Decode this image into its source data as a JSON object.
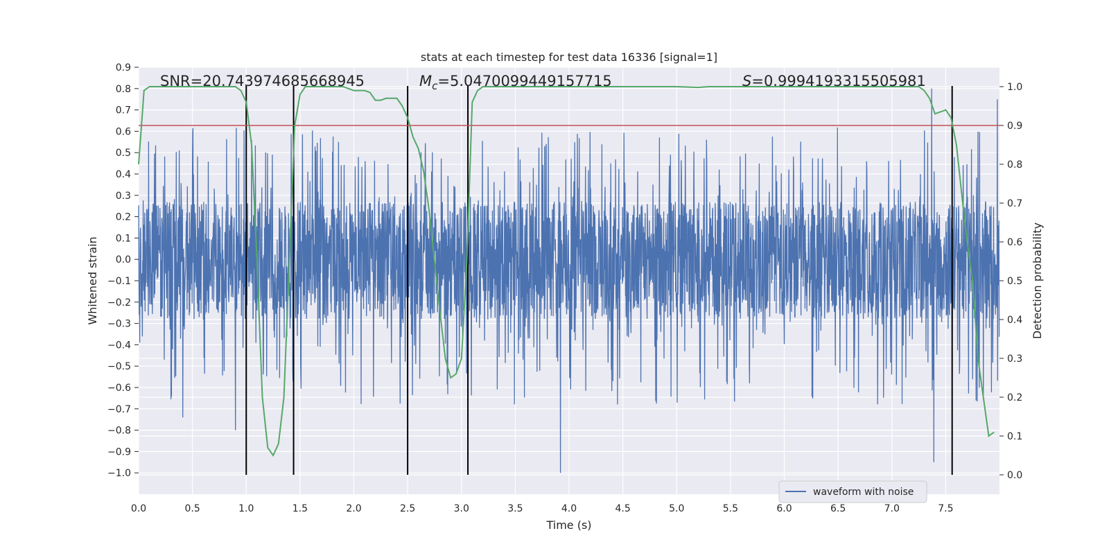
{
  "chart_data": {
    "type": "line",
    "title": "stats at each timestep for test data 16336 [signal=1]",
    "xlabel": "Time (s)",
    "ylabel_left": "Whitened strain",
    "ylabel_right": "Detection probability",
    "xlim": [
      0.0,
      8.0
    ],
    "ylim_left": [
      -1.1,
      0.9
    ],
    "ylim_right": [
      -0.05,
      1.05
    ],
    "grid": true,
    "x_ticks": [
      "0.0",
      "0.5",
      "1.0",
      "1.5",
      "2.0",
      "2.5",
      "3.0",
      "3.5",
      "4.0",
      "4.5",
      "5.0",
      "5.5",
      "6.0",
      "6.5",
      "7.0",
      "7.5"
    ],
    "y_left_ticks": [
      "0.9",
      "0.8",
      "0.7",
      "0.6",
      "0.5",
      "0.4",
      "0.3",
      "0.2",
      "0.1",
      "0.0",
      "−0.1",
      "−0.2",
      "−0.3",
      "−0.4",
      "−0.5",
      "−0.6",
      "−0.7",
      "−0.8",
      "−0.9",
      "−1.0"
    ],
    "y_right_ticks": [
      "1.0",
      "0.9",
      "0.8",
      "0.7",
      "0.6",
      "0.5",
      "0.4",
      "0.3",
      "0.2",
      "0.1",
      "0.0"
    ],
    "annotations": {
      "snr": "SNR=20.743974685668945",
      "mc_prefix": "M",
      "mc_sub": "c",
      "mc_value": "=5.0470099449157715",
      "s_prefix": "S",
      "s_value": "=0.9994193315505981"
    },
    "legend": {
      "label": "waveform with noise",
      "location": "lower-right"
    },
    "threshold": {
      "value": 0.9,
      "color": "#c44e52"
    },
    "vertical_lines": [
      1.0,
      1.44,
      2.5,
      3.06,
      7.56
    ],
    "detection_probability": {
      "color": "#55a868",
      "x": [
        0.0,
        0.05,
        0.1,
        0.15,
        0.2,
        0.3,
        0.4,
        0.5,
        0.6,
        0.7,
        0.8,
        0.9,
        0.95,
        1.0,
        1.05,
        1.1,
        1.15,
        1.2,
        1.25,
        1.3,
        1.35,
        1.4,
        1.45,
        1.5,
        1.55,
        1.6,
        1.7,
        1.8,
        1.9,
        2.0,
        2.05,
        2.1,
        2.15,
        2.2,
        2.25,
        2.3,
        2.35,
        2.4,
        2.45,
        2.5,
        2.55,
        2.6,
        2.65,
        2.7,
        2.75,
        2.8,
        2.85,
        2.9,
        2.95,
        3.0,
        3.05,
        3.1,
        3.15,
        3.2,
        3.3,
        3.5,
        4.0,
        4.5,
        5.0,
        5.2,
        5.3,
        5.5,
        6.0,
        6.5,
        7.0,
        7.25,
        7.3,
        7.35,
        7.4,
        7.45,
        7.5,
        7.55,
        7.6,
        7.65,
        7.7,
        7.75,
        7.8,
        7.85,
        7.9,
        7.95
      ],
      "y": [
        0.8,
        0.99,
        1.0,
        1.0,
        1.0,
        1.0,
        1.0,
        1.0,
        1.0,
        1.0,
        1.0,
        1.0,
        0.99,
        0.96,
        0.85,
        0.55,
        0.2,
        0.07,
        0.05,
        0.08,
        0.2,
        0.55,
        0.9,
        0.98,
        1.0,
        1.0,
        1.0,
        1.0,
        1.0,
        0.99,
        0.99,
        0.99,
        0.985,
        0.965,
        0.965,
        0.97,
        0.97,
        0.97,
        0.95,
        0.92,
        0.87,
        0.84,
        0.78,
        0.68,
        0.55,
        0.42,
        0.3,
        0.25,
        0.26,
        0.3,
        0.55,
        0.96,
        0.99,
        1.0,
        1.0,
        1.0,
        1.0,
        1.0,
        1.0,
        0.998,
        1.0,
        1.0,
        1.0,
        1.0,
        1.0,
        1.0,
        0.99,
        0.97,
        0.93,
        0.935,
        0.94,
        0.92,
        0.85,
        0.72,
        0.6,
        0.5,
        0.3,
        0.2,
        0.1,
        0.11
      ]
    },
    "waveform": {
      "color": "#4c72b0",
      "samples": 3200,
      "sample_spacing_s": 0.0025,
      "core_band": [
        -0.28,
        0.27
      ],
      "peak_range": [
        -1.0,
        0.8
      ],
      "notable_extremes": [
        {
          "x": 3.92,
          "y": -1.0
        },
        {
          "x": 7.39,
          "y": -0.95
        },
        {
          "x": 7.37,
          "y": 0.8
        },
        {
          "x": 7.98,
          "y": 0.75
        },
        {
          "x": 0.9,
          "y": -0.8
        },
        {
          "x": 0.41,
          "y": -0.74
        }
      ]
    }
  }
}
